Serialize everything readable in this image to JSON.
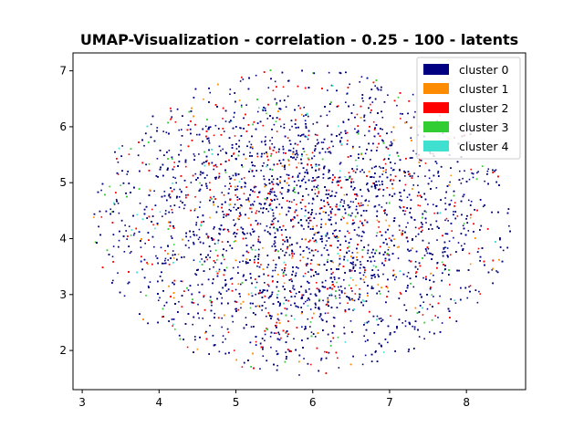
{
  "chart_data": {
    "type": "scatter",
    "title": "UMAP-Visualization - correlation - 0.25 - 100 - latents",
    "xlabel": "",
    "ylabel": "",
    "xlim": [
      2.88,
      8.77
    ],
    "ylim": [
      1.3,
      7.32
    ],
    "xticks": [
      "3",
      "4",
      "5",
      "6",
      "7",
      "8"
    ],
    "yticks": [
      "2",
      "3",
      "4",
      "5",
      "6",
      "7"
    ],
    "grid": false,
    "legend_position": "top-right",
    "point_cloud": {
      "shape": "roughly elliptical",
      "center": [
        5.85,
        4.3
      ],
      "x_extent": [
        3.1,
        8.55
      ],
      "y_extent": [
        1.55,
        7.05
      ],
      "approx_points": 7000
    },
    "series": [
      {
        "name": "cluster 0",
        "color": "#000080",
        "share": 0.72
      },
      {
        "name": "cluster 1",
        "color": "#ff8c00",
        "share": 0.05
      },
      {
        "name": "cluster 2",
        "color": "#ff0000",
        "share": 0.16
      },
      {
        "name": "cluster 3",
        "color": "#32cd32",
        "share": 0.04
      },
      {
        "name": "cluster 4",
        "color": "#40e0d0",
        "share": 0.03
      }
    ]
  }
}
